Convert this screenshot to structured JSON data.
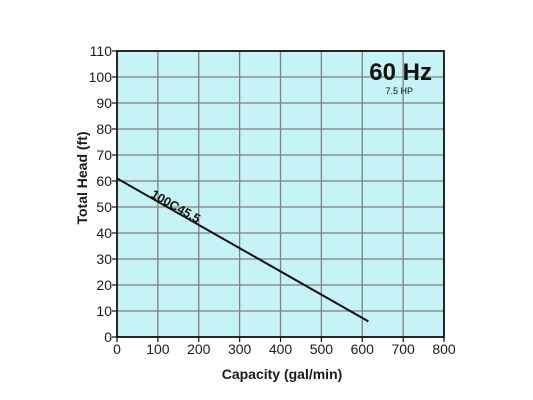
{
  "chart_data": {
    "type": "line",
    "xlabel": "Capacity (gal/min)",
    "ylabel": "Total Head (ft)",
    "xlim": [
      0,
      800
    ],
    "ylim": [
      0,
      110
    ],
    "x_ticks": [
      0,
      100,
      200,
      300,
      400,
      500,
      600,
      700,
      800
    ],
    "y_ticks": [
      0,
      10,
      20,
      30,
      40,
      50,
      60,
      70,
      80,
      90,
      100,
      110
    ],
    "grid": true,
    "annotations": [
      {
        "text": "60 Hz"
      },
      {
        "text": "7.5 HP"
      }
    ],
    "series": [
      {
        "name": "100C45.5",
        "x": [
          0,
          615
        ],
        "y": [
          61,
          6
        ]
      }
    ],
    "colors": {
      "plot_background": "#c5f3f6",
      "grid": "#808080",
      "frame": "#111111",
      "line": "#111111"
    }
  }
}
